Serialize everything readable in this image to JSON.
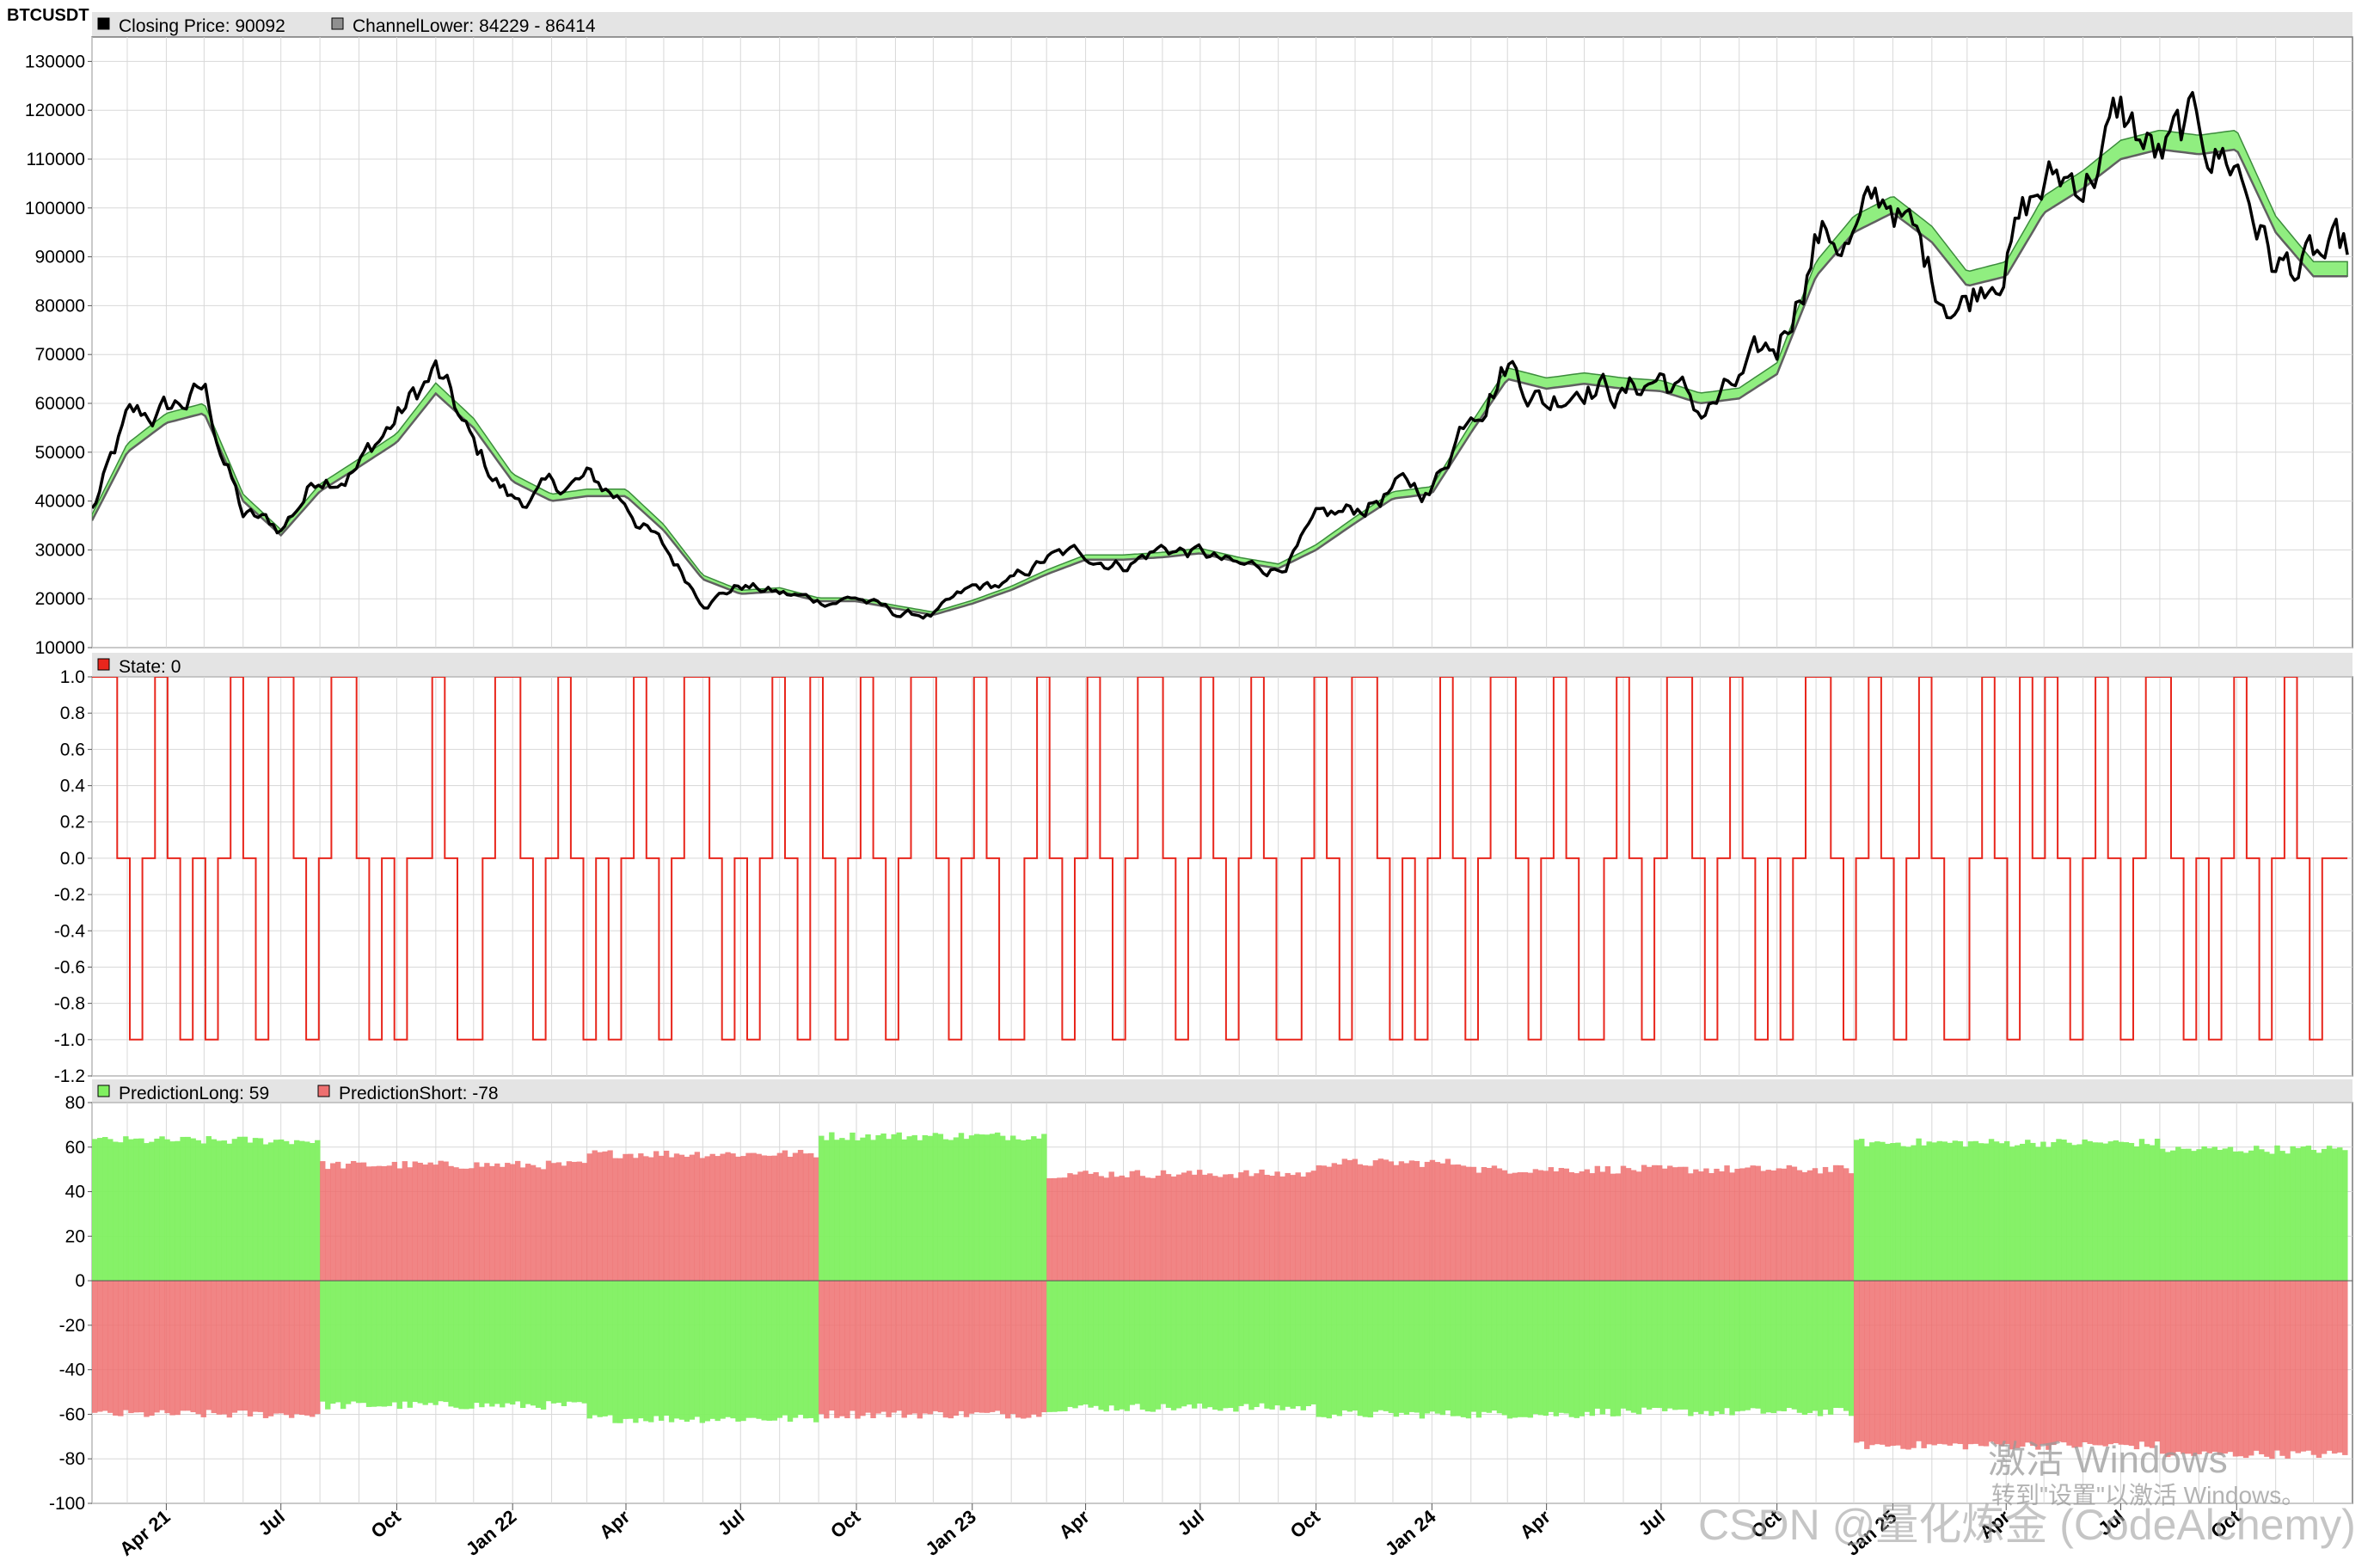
{
  "symbol": "BTCUSDT",
  "watermark": {
    "activate_title": "激活 Windows",
    "activate_sub": "转到\"设置\"以激活 Windows。",
    "credit": "CSDN @量化炼金 (CodeAlchemy)"
  },
  "colors": {
    "price": "#000000",
    "channel_fill": "#90ee80",
    "channel_edge": "#3c8c3c",
    "state": "#e8261c",
    "long": "#80f060",
    "short": "#ee7070",
    "overlap": "#9a6a30",
    "grid": "#d8d8d8",
    "header": "#e4e4e4"
  },
  "x_ticks": [
    "Apr 21",
    "Jul",
    "Oct",
    "Jan 22",
    "Apr",
    "Jul",
    "Oct",
    "Jan 23",
    "Apr",
    "Jul",
    "Oct",
    "Jan 24",
    "Apr",
    "Jul",
    "Oct",
    "Jan 25",
    "Apr",
    "Jul",
    "Oct"
  ],
  "chart_data": [
    {
      "type": "line",
      "panel": "price",
      "legend": [
        {
          "label": "Closing Price: 90092",
          "color": "#000000"
        },
        {
          "label": "ChannelLower: 84229 - 86414",
          "color": "#909090"
        }
      ],
      "ylim": [
        10000,
        135000
      ],
      "yticks": [
        10000,
        20000,
        30000,
        40000,
        50000,
        60000,
        70000,
        80000,
        90000,
        100000,
        110000,
        120000,
        130000
      ],
      "x": [
        "2021-02",
        "2021-03",
        "2021-04",
        "2021-05",
        "2021-06",
        "2021-07",
        "2021-08",
        "2021-09",
        "2021-10",
        "2021-11",
        "2021-12",
        "2022-01",
        "2022-02",
        "2022-03",
        "2022-04",
        "2022-05",
        "2022-06",
        "2022-07",
        "2022-08",
        "2022-09",
        "2022-10",
        "2022-11",
        "2022-12",
        "2023-01",
        "2023-02",
        "2023-03",
        "2023-04",
        "2023-05",
        "2023-06",
        "2023-07",
        "2023-08",
        "2023-09",
        "2023-10",
        "2023-11",
        "2023-12",
        "2024-01",
        "2024-02",
        "2024-03",
        "2024-04",
        "2024-05",
        "2024-06",
        "2024-07",
        "2024-08",
        "2024-09",
        "2024-10",
        "2024-11",
        "2024-12",
        "2025-01",
        "2025-02",
        "2025-03",
        "2025-04",
        "2025-05",
        "2025-06",
        "2025-07",
        "2025-08",
        "2025-09",
        "2025-10",
        "2025-11",
        "2025-12"
      ],
      "series": [
        {
          "name": "Closing Price",
          "values": [
            38000,
            55000,
            58000,
            62000,
            37000,
            34000,
            46000,
            48000,
            57000,
            66000,
            50000,
            40000,
            42000,
            44000,
            40000,
            30000,
            20000,
            23000,
            21000,
            19500,
            20500,
            16800,
            16700,
            21500,
            23000,
            28000,
            29000,
            27500,
            30500,
            29300,
            26000,
            26500,
            34500,
            37500,
            42500,
            42000,
            61000,
            70000,
            60500,
            67000,
            62000,
            66000,
            58000,
            63000,
            70000,
            96000,
            94000,
            102000,
            85000,
            82000,
            94000,
            104000,
            107000,
            118000,
            109000,
            114000,
            110000,
            88000,
            88000
          ]
        },
        {
          "name": "ChannelLower",
          "values": [
            36000,
            50000,
            56000,
            58000,
            40000,
            33000,
            42000,
            47000,
            52000,
            62000,
            55000,
            44000,
            40000,
            41000,
            41000,
            34000,
            24000,
            21000,
            21500,
            19500,
            19500,
            18000,
            16700,
            19000,
            21800,
            25000,
            28000,
            28000,
            28500,
            29300,
            27500,
            26200,
            30000,
            35500,
            40500,
            41500,
            54000,
            65000,
            63000,
            64000,
            63000,
            62500,
            60000,
            61000,
            66000,
            86000,
            95000,
            99000,
            93000,
            84000,
            86000,
            99000,
            104000,
            110000,
            112000,
            111000,
            112000,
            95000,
            86000
          ]
        }
      ]
    },
    {
      "type": "line",
      "panel": "state",
      "legend": [
        {
          "label": "State: 0",
          "color": "#e8261c"
        }
      ],
      "ylim": [
        -1.2,
        1.0
      ],
      "yticks": [
        -1.2,
        -1.0,
        -0.8,
        -0.6,
        -0.4,
        -0.2,
        0.0,
        0.2,
        0.4,
        0.6,
        0.8,
        1.0
      ],
      "values": [
        1,
        1,
        0,
        -1,
        0,
        1,
        0,
        -1,
        0,
        -1,
        0,
        1,
        0,
        -1,
        1,
        1,
        0,
        -1,
        0,
        1,
        1,
        0,
        -1,
        0,
        -1,
        0,
        0,
        1,
        0,
        -1,
        -1,
        0,
        1,
        1,
        0,
        -1,
        0,
        1,
        0,
        -1,
        0,
        -1,
        0,
        1,
        0,
        -1,
        0,
        1,
        1,
        0,
        -1,
        0,
        -1,
        0,
        1,
        0,
        -1,
        1,
        0,
        -1,
        0,
        1,
        0,
        -1,
        0,
        1,
        1,
        0,
        -1,
        0,
        1,
        0,
        -1,
        -1,
        0,
        1,
        0,
        -1,
        0,
        1,
        0,
        -1,
        0,
        1,
        1,
        0,
        -1,
        0,
        1,
        0,
        -1,
        0,
        1,
        0,
        -1,
        -1,
        0,
        1,
        0,
        -1,
        1,
        1,
        0,
        -1,
        0,
        -1,
        0,
        1,
        0,
        -1,
        0,
        1,
        1,
        0,
        -1,
        0,
        1,
        0,
        -1,
        -1,
        0,
        1,
        0,
        -1,
        0,
        1,
        1,
        0,
        -1,
        0,
        1,
        0,
        -1,
        0,
        -1,
        0,
        1,
        1,
        0,
        -1,
        0,
        1,
        0,
        -1,
        0,
        1,
        0,
        -1,
        -1,
        0,
        1,
        0,
        -1,
        1,
        0,
        1,
        0,
        -1,
        0,
        1,
        0,
        -1,
        0,
        1,
        1,
        0,
        -1,
        0,
        -1,
        0,
        1,
        0,
        -1,
        0,
        1,
        0,
        -1,
        0,
        0
      ]
    },
    {
      "type": "bar",
      "panel": "prediction",
      "legend": [
        {
          "label": "PredictionLong: 59",
          "color": "#80f060"
        },
        {
          "label": "PredictionShort: -78",
          "color": "#ee7070"
        }
      ],
      "ylim": [
        -100,
        80
      ],
      "yticks": [
        -100,
        -80,
        -60,
        -40,
        -20,
        0,
        20,
        40,
        60,
        80
      ],
      "segments": [
        {
          "start": "2021-02",
          "end": "2021-08",
          "long": 63,
          "short": -60
        },
        {
          "start": "2021-08",
          "end": "2022-03",
          "long": -56,
          "short": 52
        },
        {
          "start": "2022-03",
          "end": "2022-07",
          "long": -62,
          "short": 57
        },
        {
          "start": "2022-07",
          "end": "2022-09",
          "long": -62,
          "short": 57
        },
        {
          "start": "2022-09",
          "end": "2023-03",
          "long": 65,
          "short": -60
        },
        {
          "start": "2023-03",
          "end": "2023-10",
          "long": -57,
          "short": 48
        },
        {
          "start": "2023-10",
          "end": "2024-02",
          "long": -60,
          "short": 53
        },
        {
          "start": "2024-02",
          "end": "2024-05",
          "long": -60,
          "short": 50
        },
        {
          "start": "2024-05",
          "end": "2024-12",
          "long": -59,
          "short": 50
        },
        {
          "start": "2024-12",
          "end": "2025-08",
          "long": 62,
          "short": -74
        },
        {
          "start": "2025-08",
          "end": "2026-01",
          "long": 59,
          "short": -78
        }
      ]
    }
  ]
}
